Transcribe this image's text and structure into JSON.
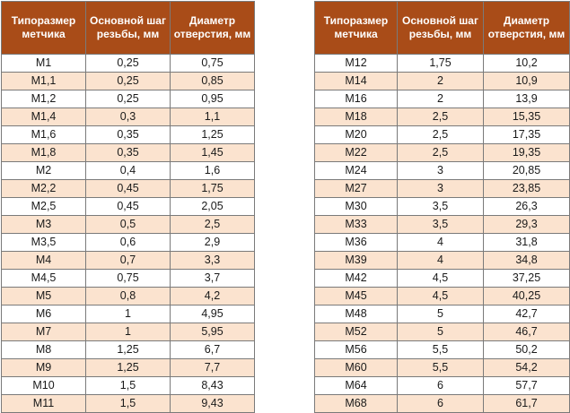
{
  "headers": [
    "Типоразмер метчика",
    "Основной шаг резьбы, мм",
    "Диаметр отверстия, мм"
  ],
  "left_rows": [
    [
      "М1",
      "0,25",
      "0,75"
    ],
    [
      "М1,1",
      "0,25",
      "0,85"
    ],
    [
      "М1,2",
      "0,25",
      "0,95"
    ],
    [
      "М1,4",
      "0,3",
      "1,1"
    ],
    [
      "М1,6",
      "0,35",
      "1,25"
    ],
    [
      "М1,8",
      "0,35",
      "1,45"
    ],
    [
      "М2",
      "0,4",
      "1,6"
    ],
    [
      "М2,2",
      "0,45",
      "1,75"
    ],
    [
      "М2,5",
      "0,45",
      "2,05"
    ],
    [
      "М3",
      "0,5",
      "2,5"
    ],
    [
      "М3,5",
      "0,6",
      "2,9"
    ],
    [
      "М4",
      "0,7",
      "3,3"
    ],
    [
      "М4,5",
      "0,75",
      "3,7"
    ],
    [
      "М5",
      "0,8",
      "4,2"
    ],
    [
      "М6",
      "1",
      "4,95"
    ],
    [
      "М7",
      "1",
      "5,95"
    ],
    [
      "М8",
      "1,25",
      "6,7"
    ],
    [
      "М9",
      "1,25",
      "7,7"
    ],
    [
      "М10",
      "1,5",
      "8,43"
    ],
    [
      "М11",
      "1,5",
      "9,43"
    ]
  ],
  "right_rows": [
    [
      "М12",
      "1,75",
      "10,2"
    ],
    [
      "М14",
      "2",
      "10,9"
    ],
    [
      "М16",
      "2",
      "13,9"
    ],
    [
      "М18",
      "2,5",
      "15,35"
    ],
    [
      "М20",
      "2,5",
      "17,35"
    ],
    [
      "М22",
      "2,5",
      "19,35"
    ],
    [
      "М24",
      "3",
      "20,85"
    ],
    [
      "М27",
      "3",
      "23,85"
    ],
    [
      "М30",
      "3,5",
      "26,3"
    ],
    [
      "М33",
      "3,5",
      "29,3"
    ],
    [
      "М36",
      "4",
      "31,8"
    ],
    [
      "М39",
      "4",
      "34,8"
    ],
    [
      "М42",
      "4,5",
      "37,25"
    ],
    [
      "М45",
      "4,5",
      "40,25"
    ],
    [
      "М48",
      "5",
      "42,7"
    ],
    [
      "М52",
      "5",
      "46,7"
    ],
    [
      "М56",
      "5,5",
      "50,2"
    ],
    [
      "М60",
      "5,5",
      "54,2"
    ],
    [
      "М64",
      "6",
      "57,7"
    ],
    [
      "М68",
      "6",
      "61,7"
    ]
  ]
}
